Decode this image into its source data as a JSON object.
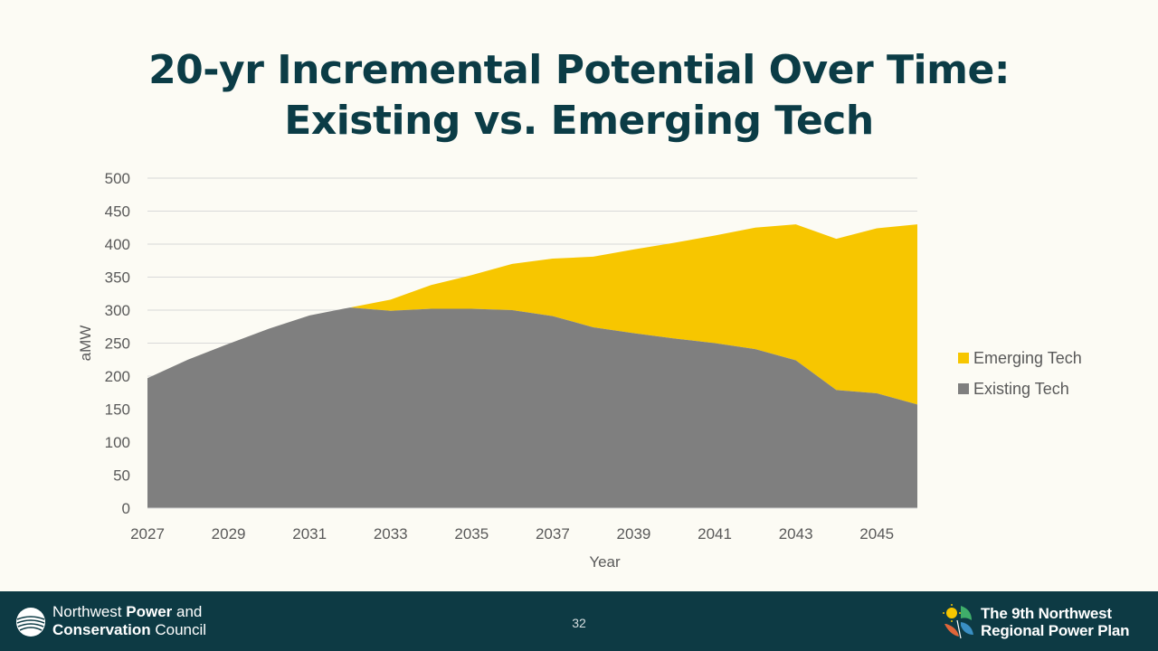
{
  "slide": {
    "title_line1": "20-yr Incremental Potential Over Time:",
    "title_line2": "Existing vs. Emerging Tech",
    "page_number": "32"
  },
  "footer": {
    "org_line1_regular": "Northwest ",
    "org_line1_bold": "Power",
    "org_line1_end": " and",
    "org_line2_bold": "Conservation",
    "org_line2_end": " Council",
    "plan_line1": "The 9th Northwest",
    "plan_line2": "Regional Power Plan"
  },
  "colors": {
    "existing": "#7f7f7f",
    "emerging": "#f7c600",
    "title": "#0b3c46",
    "footer_bg": "#0d3a44",
    "grid": "#d9d9d9",
    "axis_text": "#595959"
  },
  "chart_data": {
    "type": "area",
    "stacked": true,
    "title": "",
    "xlabel": "Year",
    "ylabel": "aMW",
    "ylim": [
      0,
      500
    ],
    "yticks": [
      0,
      50,
      100,
      150,
      200,
      250,
      300,
      350,
      400,
      450,
      500
    ],
    "xticks": [
      2027,
      2029,
      2031,
      2033,
      2035,
      2037,
      2039,
      2041,
      2043,
      2045
    ],
    "x": [
      2027,
      2028,
      2029,
      2030,
      2031,
      2032,
      2033,
      2034,
      2035,
      2036,
      2037,
      2038,
      2039,
      2040,
      2041,
      2042,
      2043,
      2044,
      2045,
      2046
    ],
    "grid": true,
    "legend_position": "right",
    "series": [
      {
        "name": "Existing Tech",
        "values": [
          197,
          225,
          249,
          272,
          292,
          304,
          299,
          302,
          302,
          300,
          291,
          274,
          265,
          257,
          250,
          241,
          224,
          179,
          174,
          157
        ]
      },
      {
        "name": "Emerging Tech",
        "values": [
          0,
          0,
          0,
          0,
          0,
          0,
          17,
          36,
          51,
          70,
          87,
          107,
          127,
          145,
          163,
          184,
          206,
          229,
          250,
          273
        ]
      }
    ]
  }
}
